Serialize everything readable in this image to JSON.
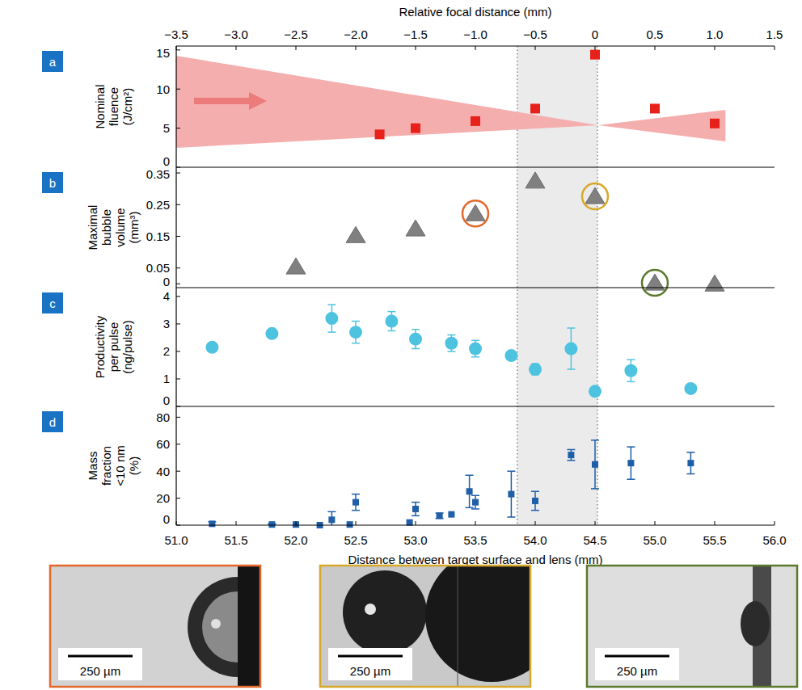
{
  "chart_data": [
    {
      "panel": "a",
      "type": "scatter",
      "ylabel": [
        "Nominal",
        "fluence",
        "(J/cm²)"
      ],
      "x2label": "Relative focal distance (mm)",
      "x2lim": [
        -3.5,
        1.5
      ],
      "x2ticks": [
        {
          "value": -3.5,
          "label": "−3.5"
        },
        {
          "value": -3.0,
          "label": "−3.0"
        },
        {
          "value": -2.5,
          "label": "−2.5"
        },
        {
          "value": -2.0,
          "label": "−2.0"
        },
        {
          "value": -1.5,
          "label": "−1.5"
        },
        {
          "value": -1.0,
          "label": "−1.0"
        },
        {
          "value": -0.5,
          "label": "−0.5"
        },
        0,
        0.5,
        {
          "value": 1.0,
          "label": "1.0"
        },
        1.5
      ],
      "xlim": [
        51.0,
        56.0
      ],
      "ylim": [
        0,
        15.5
      ],
      "yticks": [
        0,
        5,
        10,
        15
      ],
      "series": [
        {
          "x": [
            52.7,
            53.0,
            53.5,
            54.0,
            54.5,
            55.0,
            55.5
          ],
          "values": [
            4.2,
            5.0,
            5.9,
            7.5,
            14.4,
            7.5,
            5.6
          ],
          "color": "#e8201a",
          "marker": "square"
        }
      ]
    },
    {
      "panel": "b",
      "type": "scatter",
      "tick_labels": "y",
      "ylabel": [
        "Maximal",
        "bubble",
        "volume",
        "(mm³)"
      ],
      "xlim": [
        51.0,
        56.0
      ],
      "ylim": [
        -0.012,
        0.368
      ],
      "yticks": [
        0,
        0.05,
        0.15,
        0.25,
        0.35
      ],
      "series": [
        {
          "x": [
            52.0,
            52.5,
            53.0,
            53.5,
            54.0,
            54.5,
            55.0,
            55.5
          ],
          "values": [
            0.054,
            0.153,
            0.174,
            0.222,
            0.325,
            0.276,
            0.003,
            0
          ],
          "color": "#808080",
          "marker": "triangle"
        },
        {
          "x": [
            53.5,
            54.5,
            55.0
          ],
          "values": [
            0.222,
            0.276,
            0.003
          ],
          "colors": [
            "#e2692b",
            "#d8a82b",
            "#5b7a2c"
          ],
          "marker": "ring"
        }
      ]
    },
    {
      "panel": "c",
      "type": "scatter",
      "tick_labels": "y",
      "ylabel": [
        "Productivity",
        "per pulse",
        "(ng/pulse)"
      ],
      "xlim": [
        51.0,
        56.0
      ],
      "ylim": [
        0,
        4.32
      ],
      "yticks": [
        0,
        1,
        2,
        3,
        4
      ],
      "series": [
        {
          "x": [
            51.3,
            51.8,
            52.3,
            52.5,
            52.8,
            53.0,
            53.3,
            53.5,
            53.8,
            54.0,
            54.3,
            54.5,
            54.8,
            55.3
          ],
          "values": [
            2.15,
            2.65,
            3.2,
            2.7,
            3.1,
            2.45,
            2.3,
            2.1,
            1.85,
            1.35,
            2.1,
            0.55,
            1.3,
            0.65
          ],
          "errors": [
            null,
            null,
            0.5,
            0.4,
            0.35,
            0.35,
            0.3,
            0.3,
            null,
            0.2,
            0.75,
            null,
            0.4,
            null
          ],
          "color": "#4ec3e0",
          "marker": "circle"
        }
      ]
    },
    {
      "panel": "d",
      "type": "scatter",
      "ylabel": [
        "Mass",
        "fraction",
        "<10 nm",
        "(%)"
      ],
      "xlabel": "Distance between target surface and lens (mm)",
      "xlim": [
        51.0,
        56.0
      ],
      "xticks": [
        {
          "value": 51.0,
          "label": "51.0"
        },
        51.5,
        {
          "value": 52.0,
          "label": "52.0"
        },
        52.5,
        {
          "value": 53.0,
          "label": "53.0"
        },
        53.5,
        {
          "value": 54.0,
          "label": "54.0"
        },
        54.5,
        {
          "value": 55.0,
          "label": "55.0"
        },
        55.5,
        {
          "value": 56.0,
          "label": "56.0"
        }
      ],
      "ylim": [
        0,
        88
      ],
      "yticks": [
        0,
        20,
        40,
        60,
        80
      ],
      "series": [
        {
          "x": [
            51.3,
            51.8,
            52.0,
            52.2,
            52.3,
            52.45,
            52.5,
            52.95,
            53.0,
            53.2,
            53.3,
            53.45,
            53.5,
            53.8,
            54.0,
            54.3,
            54.5,
            54.8,
            55.3
          ],
          "values": [
            1,
            0.5,
            0.5,
            0,
            4,
            0.5,
            17,
            2,
            12,
            7,
            8,
            25,
            17,
            23,
            18,
            52,
            45,
            46,
            46
          ],
          "errors": [
            1.5,
            0.5,
            null,
            null,
            6,
            null,
            6,
            null,
            5,
            2,
            null,
            12,
            5,
            17,
            7,
            4,
            18,
            12,
            8
          ],
          "color": "#1f5fa8",
          "marker": "square"
        }
      ]
    }
  ],
  "highlight_band": [
    53.85,
    54.52
  ],
  "images": [
    {
      "scale_label": "250 µm",
      "color": "#e2692b"
    },
    {
      "scale_label": "250 µm",
      "color": "#d8a82b"
    },
    {
      "scale_label": "250 µm",
      "color": "#5b7a2c"
    }
  ]
}
